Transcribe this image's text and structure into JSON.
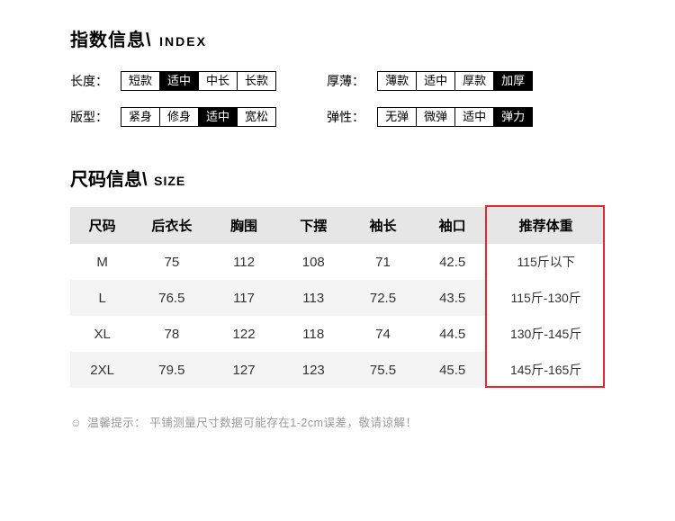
{
  "index": {
    "title_cn": "指数信息\\",
    "title_en": "INDEX",
    "rows": [
      {
        "label": "长度：",
        "options": [
          "短款",
          "适中",
          "中长",
          "长款"
        ],
        "selected": 1,
        "label2": "厚薄：",
        "options2": [
          "薄款",
          "适中",
          "厚款",
          "加厚"
        ],
        "selected2": 3
      },
      {
        "label": "版型：",
        "options": [
          "紧身",
          "修身",
          "适中",
          "宽松"
        ],
        "selected": 2,
        "label2": "弹性：",
        "options2": [
          "无弹",
          "微弹",
          "适中",
          "弹力"
        ],
        "selected2": 3
      }
    ]
  },
  "size": {
    "title_cn": "尺码信息\\",
    "title_en": "SIZE",
    "columns": [
      "尺码",
      "后衣长",
      "胸围",
      "下摆",
      "袖长",
      "袖口",
      "推荐体重"
    ],
    "rows": [
      [
        "M",
        "75",
        "112",
        "108",
        "71",
        "42.5",
        "115斤以下"
      ],
      [
        "L",
        "76.5",
        "117",
        "113",
        "72.5",
        "43.5",
        "115斤-130斤"
      ],
      [
        "XL",
        "78",
        "122",
        "118",
        "74",
        "44.5",
        "130斤-145斤"
      ],
      [
        "2XL",
        "79.5",
        "127",
        "123",
        "75.5",
        "45.5",
        "145斤-165斤"
      ]
    ],
    "highlight_last_col": true
  },
  "note": {
    "icon": "☺",
    "label": "温馨提示：",
    "text": "平铺测量尺寸数据可能存在1-2cm误差，敬请谅解！"
  },
  "col_widths_pct": [
    12,
    14,
    13,
    13,
    13,
    13,
    22
  ]
}
